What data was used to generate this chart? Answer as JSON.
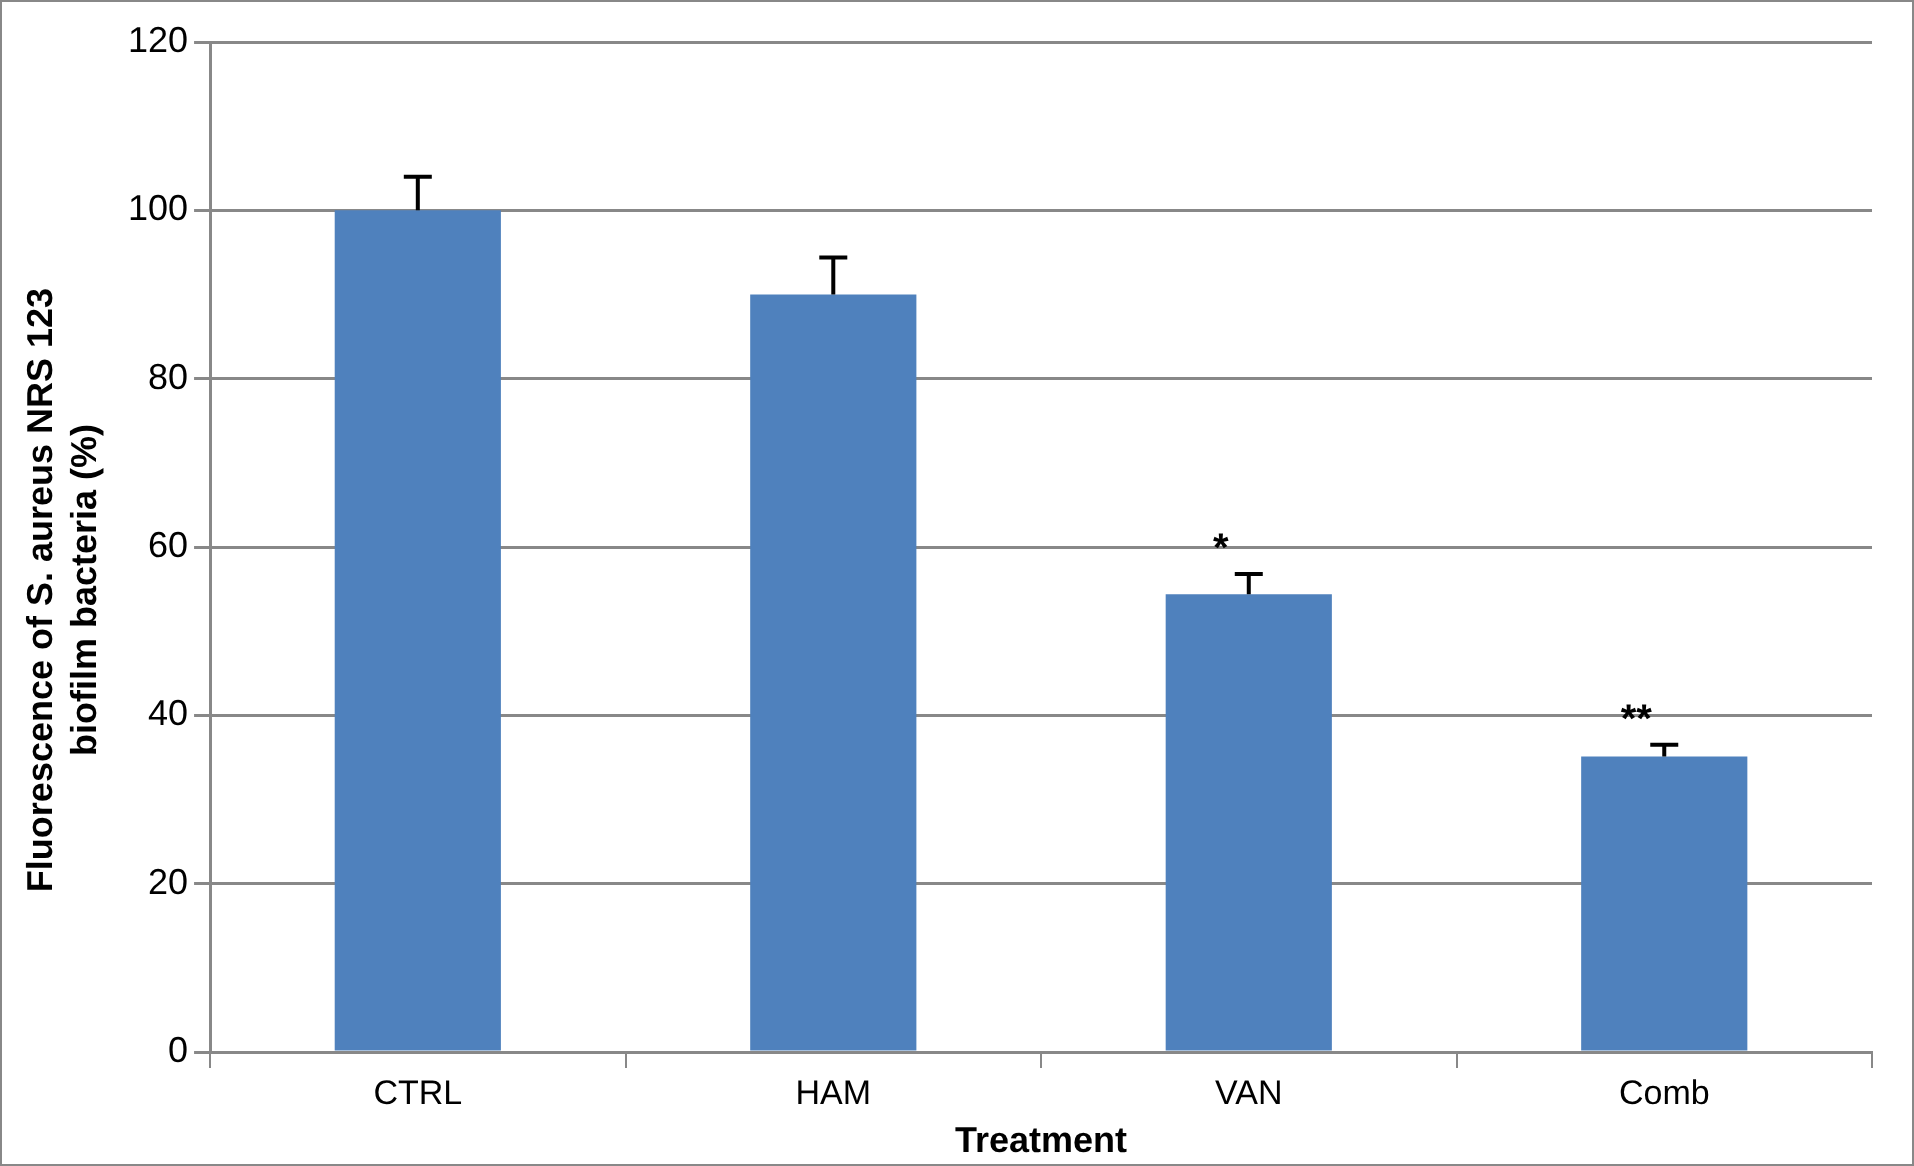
{
  "chart_data": {
    "type": "bar",
    "xlabel": "Treatment",
    "ylabel": "Fluorescence of S. aureus NRS 123 biofilm bacteria (%)",
    "categories": [
      "CTRL",
      "HAM",
      "VAN",
      "Comb"
    ],
    "values": [
      100,
      90,
      54.4,
      35.1
    ],
    "errors": [
      [
        100,
        104
      ],
      [
        90,
        94.4
      ],
      [
        54.4,
        56.8
      ],
      [
        35.1,
        36.5
      ]
    ],
    "color": "#4f81bd",
    "ylim": [
      0,
      120
    ],
    "yticks": [
      0,
      20,
      40,
      60,
      80,
      100,
      120
    ],
    "grid": "y",
    "annotations": [
      {
        "text": "*",
        "x": "VAN",
        "y": 56.8
      },
      {
        "text": "**",
        "x": "Comb",
        "y": 36.5
      }
    ]
  }
}
